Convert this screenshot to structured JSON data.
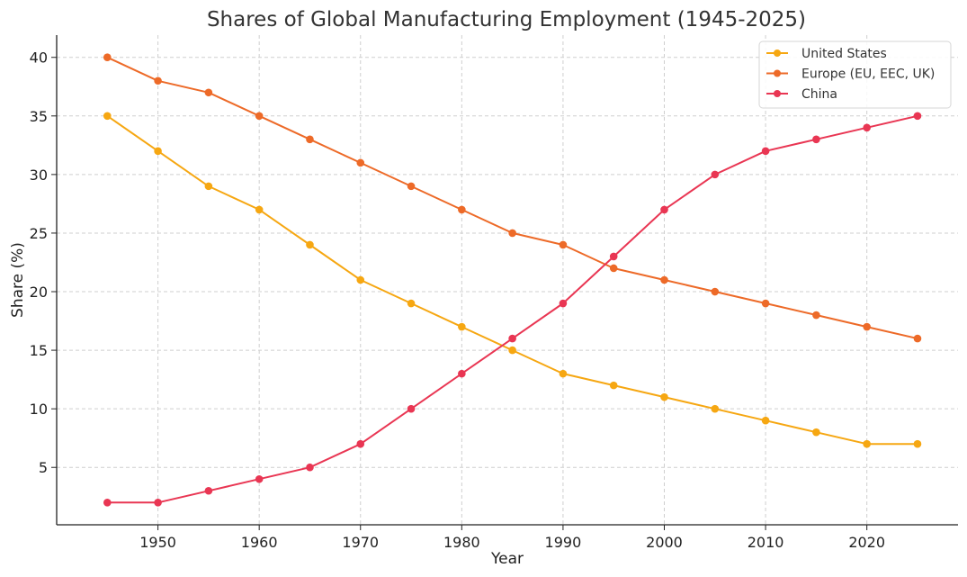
{
  "chart_data": {
    "type": "line",
    "title": "Shares of Global Manufacturing Employment (1945-2025)",
    "xlabel": "Year",
    "ylabel": "Share (%)",
    "x": [
      1945,
      1950,
      1955,
      1960,
      1965,
      1970,
      1975,
      1980,
      1985,
      1990,
      1995,
      2000,
      2005,
      2010,
      2015,
      2020,
      2025
    ],
    "xticks": [
      "1950",
      "1960",
      "1970",
      "1980",
      "1990",
      "2000",
      "2010",
      "2020"
    ],
    "yticks": [
      "5",
      "10",
      "15",
      "20",
      "25",
      "30",
      "35",
      "40"
    ],
    "xlim": [
      1940,
      2029
    ],
    "ylim": [
      0.1,
      41.9
    ],
    "grid": true,
    "legend_position": "top-right",
    "series": [
      {
        "name": "United States",
        "color": "#f6a712",
        "values": [
          35,
          32,
          29,
          27,
          24,
          21,
          19,
          17,
          15,
          13,
          12,
          11,
          10,
          9,
          8,
          7,
          7
        ]
      },
      {
        "name": "Europe (EU, EEC, UK)",
        "color": "#ed6a28",
        "values": [
          40,
          38,
          37,
          35,
          33,
          31,
          29,
          27,
          25,
          24,
          22,
          21,
          20,
          19,
          18,
          17,
          16
        ]
      },
      {
        "name": "China",
        "color": "#e93653",
        "values": [
          2,
          2,
          3,
          4,
          5,
          7,
          10,
          13,
          16,
          19,
          23,
          27,
          30,
          32,
          33,
          34,
          35
        ]
      }
    ]
  }
}
